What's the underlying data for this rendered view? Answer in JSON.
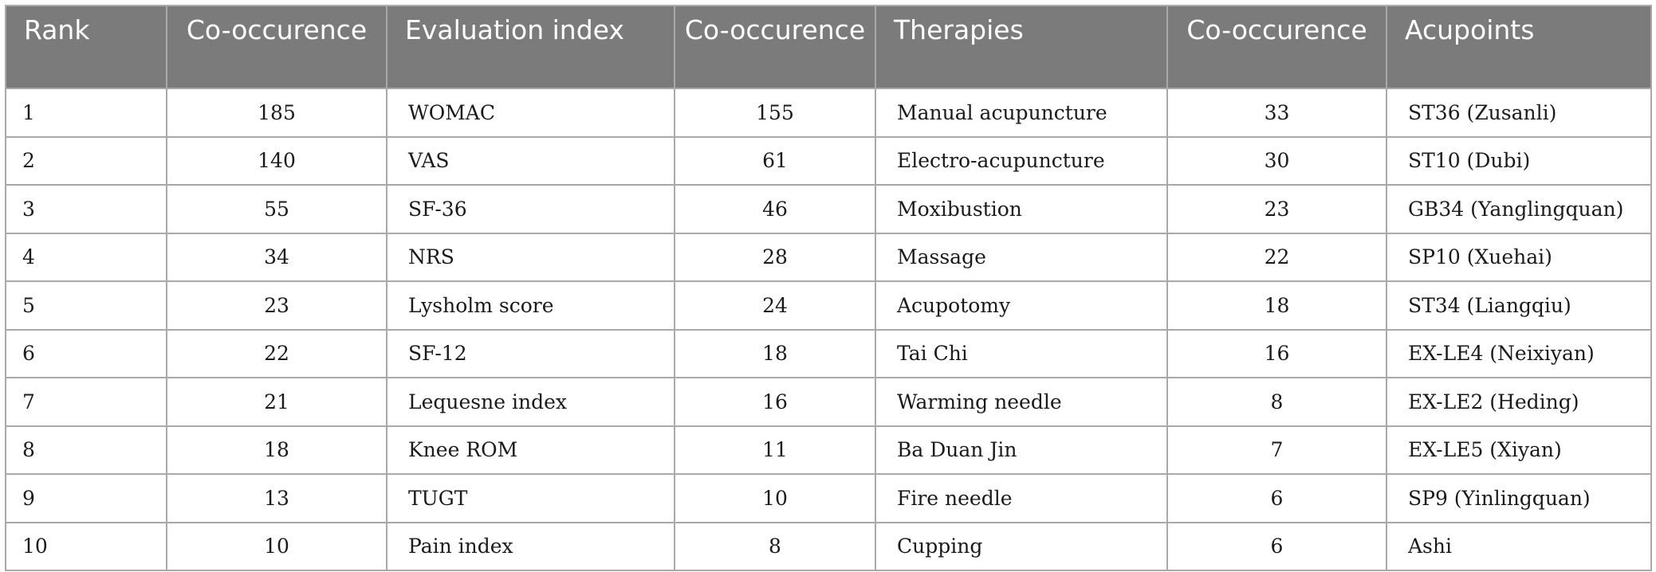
{
  "table": {
    "headers": [
      "Rank",
      "Co-occurence",
      "Evaluation index",
      "Co-occurence",
      "Therapies",
      "Co-occurence",
      "Acupoints"
    ],
    "rows": [
      [
        "1",
        "185",
        "WOMAC",
        "155",
        "Manual acupuncture",
        "33",
        "ST36 (Zusanli)"
      ],
      [
        "2",
        "140",
        "VAS",
        "61",
        "Electro-acupuncture",
        "30",
        "ST10 (Dubi)"
      ],
      [
        "3",
        "55",
        "SF-36",
        "46",
        "Moxibustion",
        "23",
        "GB34 (Yanglingquan)"
      ],
      [
        "4",
        "34",
        "NRS",
        "28",
        "Massage",
        "22",
        "SP10 (Xuehai)"
      ],
      [
        "5",
        "23",
        "Lysholm score",
        "24",
        "Acupotomy",
        "18",
        "ST34 (Liangqiu)"
      ],
      [
        "6",
        "22",
        "SF-12",
        "18",
        "Tai Chi",
        "16",
        "EX-LE4 (Neixiyan)"
      ],
      [
        "7",
        "21",
        "Lequesne index",
        "16",
        "Warming needle",
        "8",
        "EX-LE2 (Heding)"
      ],
      [
        "8",
        "18",
        "Knee ROM",
        "11",
        "Ba Duan Jin",
        "7",
        "EX-LE5 (Xiyan)"
      ],
      [
        "9",
        "13",
        "TUGT",
        "10",
        "Fire needle",
        "6",
        "SP9 (Yinlingquan)"
      ],
      [
        "10",
        "10",
        "Pain index",
        "8",
        "Cupping",
        "6",
        "Ashi"
      ]
    ]
  },
  "colors": {
    "header_bg": "#7b7b7b",
    "header_text": "#ffffff",
    "border": "#a9a9a9",
    "cell_text": "#1a1a1a"
  }
}
